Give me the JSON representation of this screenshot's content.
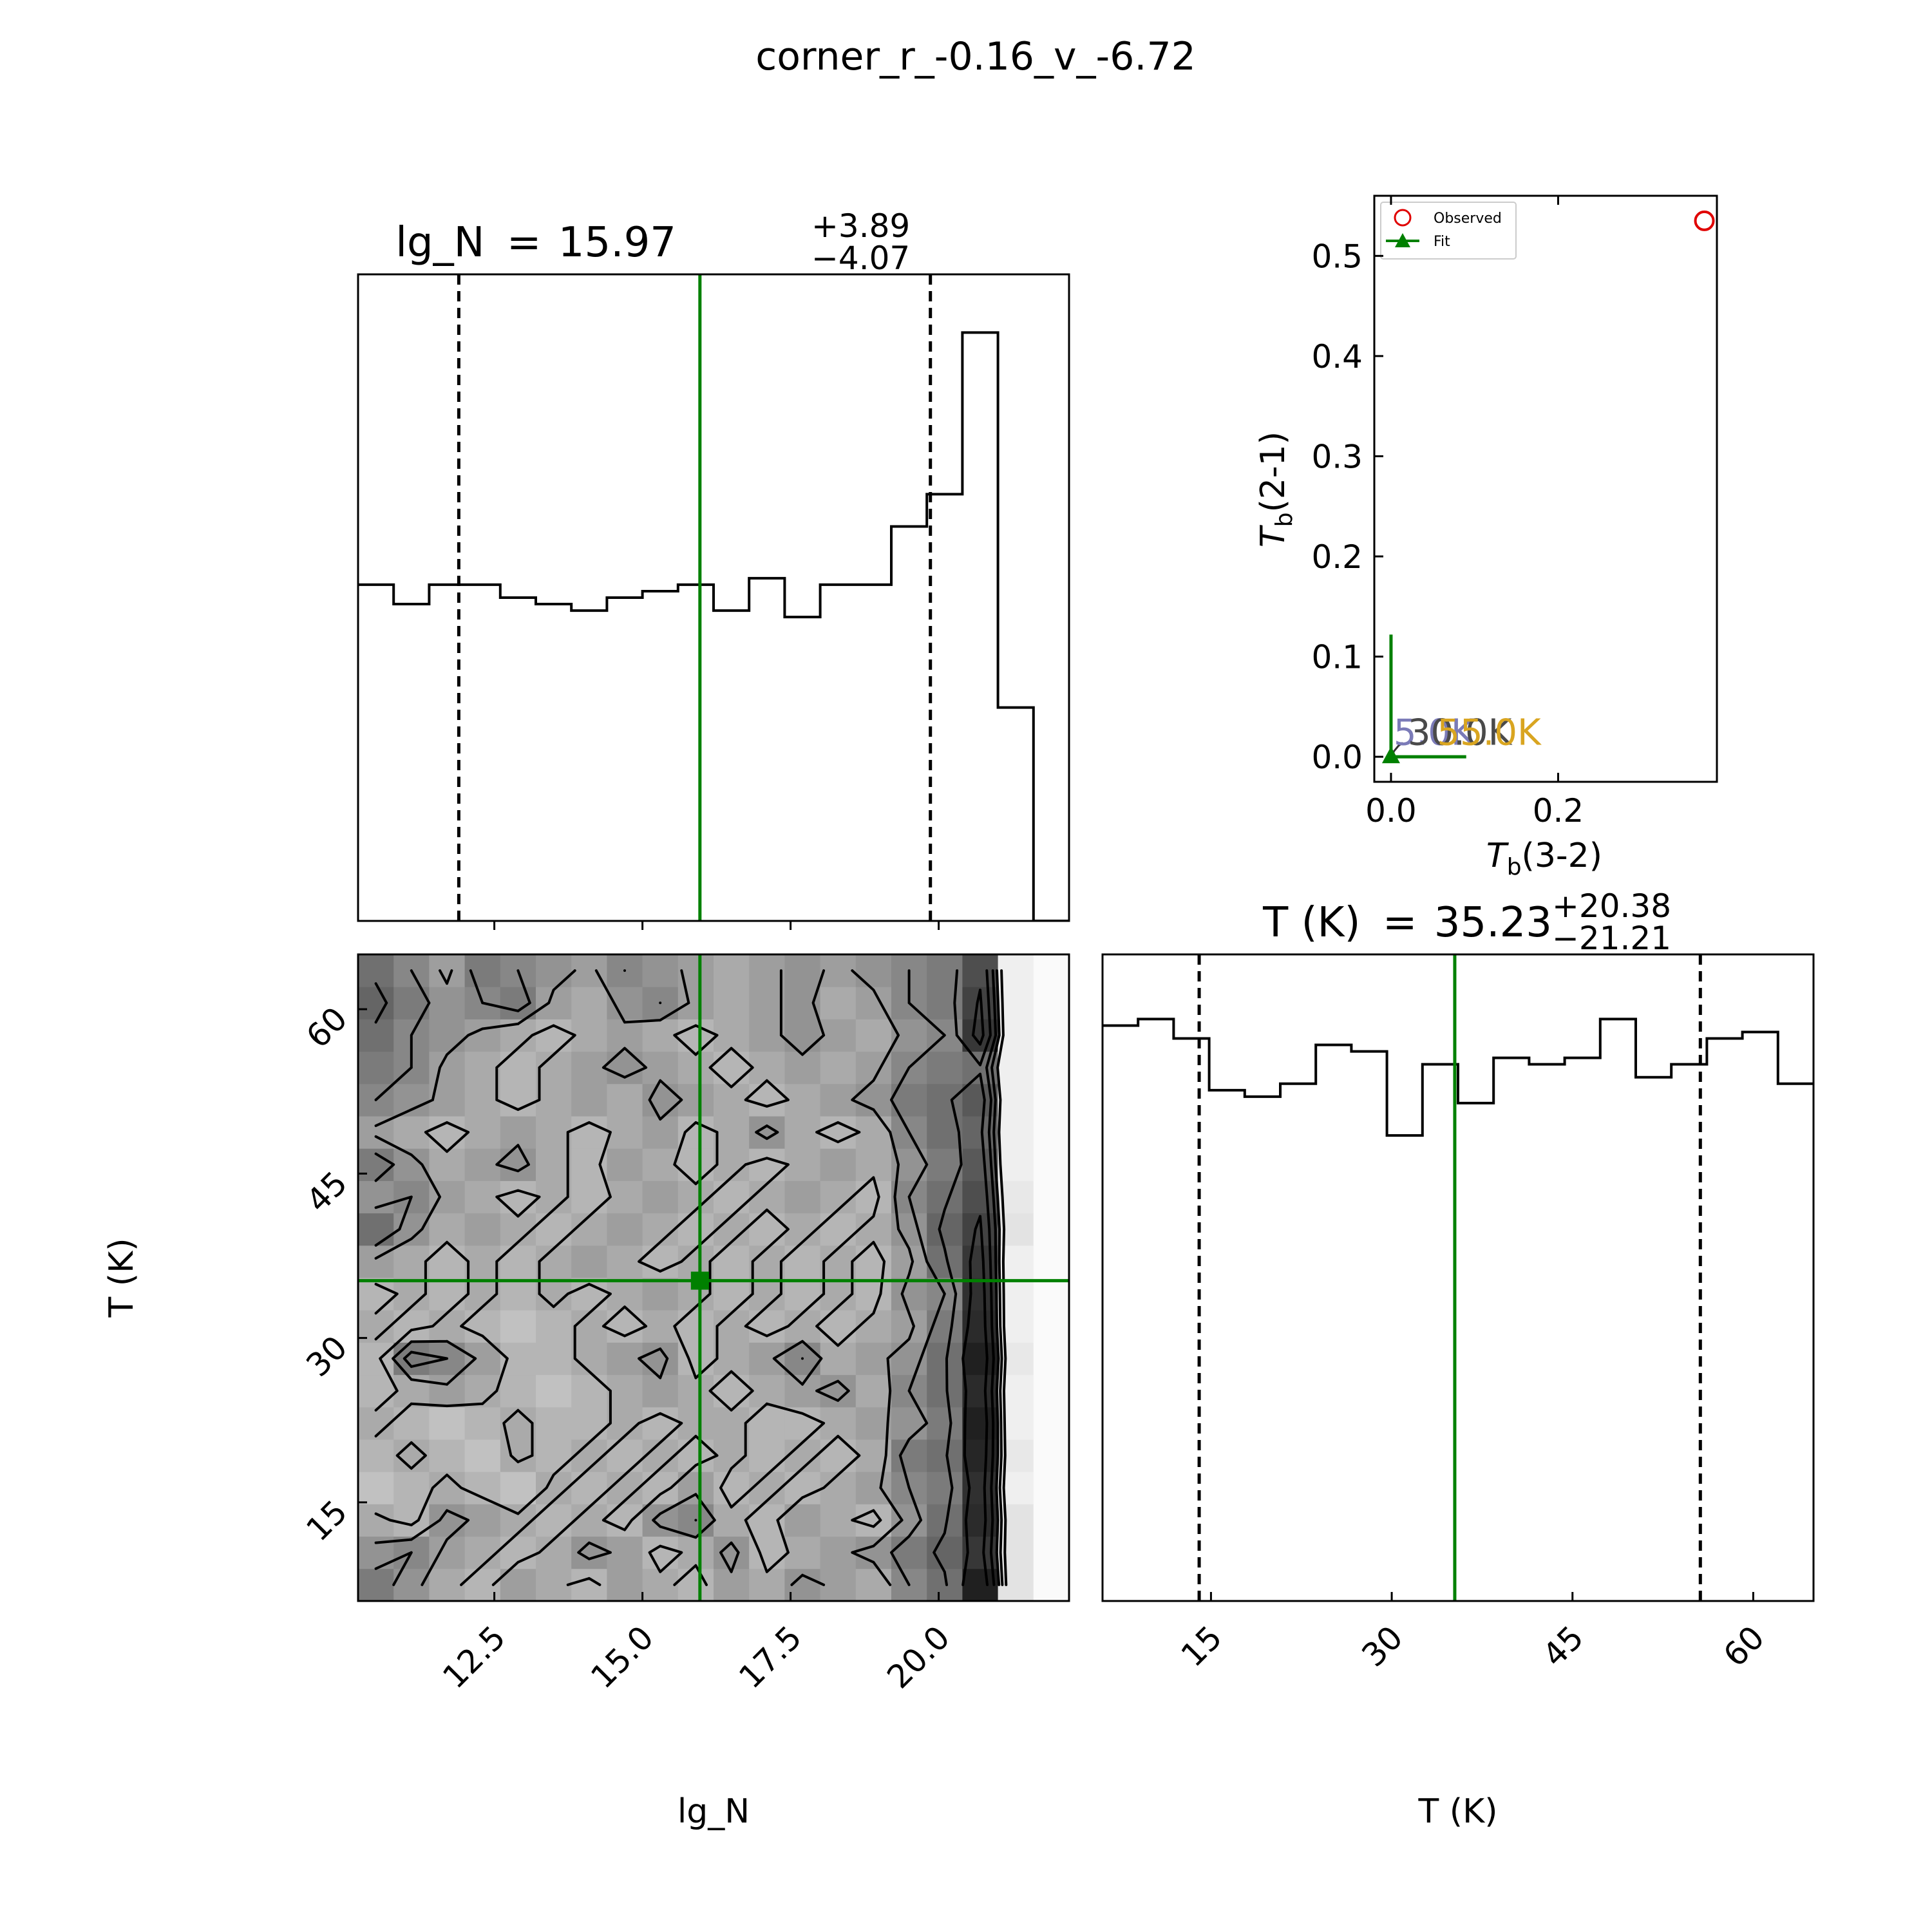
{
  "figure": {
    "title": "corner_r_-0.16_v_-6.72"
  },
  "colors": {
    "line": "#000000",
    "fit": "#008000",
    "observed": "#e00000",
    "label_5K": "#7b7bb8",
    "label_30K": "#4a4a4a",
    "label_55K": "#d9a520"
  },
  "chart_data": [
    {
      "type": "histogram",
      "panel": "lg_N marginal",
      "title_param": "lg_N",
      "title_value": "15.97",
      "title_plus": "+3.89",
      "title_minus": "−4.07",
      "xlim": [
        10.2,
        22.2
      ],
      "bin_edges": [
        10.2,
        10.8,
        11.4,
        12.0,
        12.6,
        13.2,
        13.8,
        14.4,
        15.0,
        15.6,
        16.2,
        16.8,
        17.4,
        18.0,
        18.6,
        19.2,
        19.8,
        20.4,
        21.0,
        21.6,
        22.2
      ],
      "counts": [
        0.52,
        0.49,
        0.52,
        0.52,
        0.5,
        0.49,
        0.48,
        0.5,
        0.51,
        0.52,
        0.48,
        0.53,
        0.47,
        0.52,
        0.52,
        0.61,
        0.66,
        0.91,
        0.33,
        0.0
      ],
      "ylim": [
        0,
        1.0
      ],
      "median": 15.97,
      "quantile_low": 11.9,
      "quantile_high": 19.86
    },
    {
      "type": "heatmap",
      "panel": "lg_N vs T (K) 2D posterior",
      "xlim": [
        10.2,
        22.2
      ],
      "ylim": [
        6.0,
        65.0
      ],
      "xticks": [
        12.5,
        15.0,
        17.5,
        20.0
      ],
      "xtick_labels": [
        "12.5",
        "15.0",
        "17.5",
        "20.0"
      ],
      "yticks": [
        15,
        30,
        45,
        60
      ],
      "ytick_labels": [
        "15",
        "30",
        "45",
        "60"
      ],
      "xlabel": "lg_N",
      "ylabel": "T (K)",
      "nx": 20,
      "ny": 20,
      "density": [
        [
          0.55,
          0.45,
          0.35,
          0.3,
          0.4,
          0.35,
          0.3,
          0.4,
          0.35,
          0.3,
          0.4,
          0.35,
          0.45,
          0.4,
          0.35,
          0.5,
          0.6,
          0.95,
          0.1,
          0.0
        ],
        [
          0.45,
          0.5,
          0.4,
          0.35,
          0.3,
          0.35,
          0.45,
          0.4,
          0.3,
          0.35,
          0.45,
          0.3,
          0.35,
          0.4,
          0.45,
          0.55,
          0.65,
          0.85,
          0.1,
          0.0
        ],
        [
          0.35,
          0.3,
          0.45,
          0.4,
          0.35,
          0.3,
          0.35,
          0.3,
          0.45,
          0.5,
          0.35,
          0.3,
          0.4,
          0.35,
          0.3,
          0.45,
          0.6,
          0.9,
          0.1,
          0.0
        ],
        [
          0.25,
          0.3,
          0.35,
          0.3,
          0.25,
          0.35,
          0.3,
          0.35,
          0.3,
          0.4,
          0.3,
          0.35,
          0.3,
          0.35,
          0.4,
          0.5,
          0.55,
          0.88,
          0.05,
          0.0
        ],
        [
          0.3,
          0.35,
          0.3,
          0.25,
          0.35,
          0.3,
          0.35,
          0.3,
          0.35,
          0.3,
          0.35,
          0.3,
          0.35,
          0.3,
          0.35,
          0.55,
          0.6,
          0.92,
          0.08,
          0.0
        ],
        [
          0.35,
          0.3,
          0.25,
          0.3,
          0.35,
          0.3,
          0.3,
          0.35,
          0.3,
          0.35,
          0.35,
          0.3,
          0.3,
          0.35,
          0.4,
          0.45,
          0.55,
          0.95,
          0.05,
          0.0
        ],
        [
          0.3,
          0.35,
          0.4,
          0.35,
          0.3,
          0.25,
          0.3,
          0.35,
          0.4,
          0.35,
          0.3,
          0.35,
          0.4,
          0.45,
          0.35,
          0.5,
          0.6,
          0.9,
          0.05,
          0.0
        ],
        [
          0.3,
          0.55,
          0.5,
          0.4,
          0.3,
          0.3,
          0.35,
          0.4,
          0.45,
          0.3,
          0.35,
          0.4,
          0.5,
          0.35,
          0.4,
          0.45,
          0.6,
          0.95,
          0.08,
          0.0
        ],
        [
          0.35,
          0.3,
          0.35,
          0.3,
          0.25,
          0.3,
          0.35,
          0.3,
          0.35,
          0.3,
          0.35,
          0.3,
          0.35,
          0.3,
          0.35,
          0.4,
          0.55,
          0.9,
          0.05,
          0.0
        ],
        [
          0.3,
          0.35,
          0.3,
          0.35,
          0.3,
          0.35,
          0.3,
          0.35,
          0.4,
          0.35,
          0.3,
          0.35,
          0.3,
          0.35,
          0.3,
          0.45,
          0.5,
          0.88,
          0.05,
          0.0
        ],
        [
          0.4,
          0.35,
          0.3,
          0.35,
          0.3,
          0.35,
          0.4,
          0.35,
          0.3,
          0.35,
          0.3,
          0.35,
          0.3,
          0.35,
          0.3,
          0.4,
          0.6,
          0.85,
          0.05,
          0.0
        ],
        [
          0.6,
          0.45,
          0.35,
          0.4,
          0.35,
          0.3,
          0.35,
          0.4,
          0.35,
          0.3,
          0.35,
          0.3,
          0.35,
          0.3,
          0.35,
          0.45,
          0.65,
          0.8,
          0.1,
          0.0
        ],
        [
          0.45,
          0.5,
          0.4,
          0.35,
          0.3,
          0.35,
          0.3,
          0.35,
          0.4,
          0.35,
          0.3,
          0.35,
          0.4,
          0.35,
          0.3,
          0.5,
          0.6,
          0.75,
          0.08,
          0.0
        ],
        [
          0.55,
          0.45,
          0.35,
          0.4,
          0.45,
          0.35,
          0.3,
          0.4,
          0.35,
          0.3,
          0.35,
          0.3,
          0.35,
          0.4,
          0.35,
          0.45,
          0.55,
          0.7,
          0.05,
          0.0
        ],
        [
          0.4,
          0.35,
          0.3,
          0.35,
          0.4,
          0.35,
          0.3,
          0.35,
          0.4,
          0.3,
          0.35,
          0.45,
          0.35,
          0.3,
          0.35,
          0.5,
          0.6,
          0.65,
          0.05,
          0.0
        ],
        [
          0.5,
          0.45,
          0.4,
          0.35,
          0.3,
          0.35,
          0.4,
          0.35,
          0.45,
          0.4,
          0.35,
          0.3,
          0.35,
          0.4,
          0.45,
          0.55,
          0.6,
          0.7,
          0.05,
          0.0
        ],
        [
          0.55,
          0.5,
          0.4,
          0.35,
          0.3,
          0.35,
          0.4,
          0.45,
          0.4,
          0.35,
          0.3,
          0.35,
          0.4,
          0.35,
          0.4,
          0.5,
          0.55,
          0.6,
          0.05,
          0.0
        ],
        [
          0.6,
          0.5,
          0.45,
          0.4,
          0.35,
          0.3,
          0.35,
          0.4,
          0.35,
          0.3,
          0.35,
          0.4,
          0.45,
          0.4,
          0.35,
          0.45,
          0.5,
          0.85,
          0.05,
          0.0
        ],
        [
          0.65,
          0.55,
          0.45,
          0.5,
          0.55,
          0.4,
          0.35,
          0.45,
          0.5,
          0.4,
          0.35,
          0.4,
          0.45,
          0.35,
          0.4,
          0.5,
          0.55,
          0.8,
          0.05,
          0.0
        ],
        [
          0.6,
          0.5,
          0.4,
          0.55,
          0.5,
          0.45,
          0.4,
          0.5,
          0.45,
          0.4,
          0.35,
          0.4,
          0.45,
          0.4,
          0.45,
          0.5,
          0.55,
          0.75,
          0.05,
          0.0
        ]
      ],
      "best_fit_x": 15.97,
      "best_fit_y": 35.23
    },
    {
      "type": "histogram",
      "panel": "T (K) marginal",
      "title_param": "T (K)",
      "title_value": "35.23",
      "title_plus": "+20.38",
      "title_minus": "−21.21",
      "xlim": [
        6.0,
        65.0
      ],
      "xticks": [
        15,
        30,
        45,
        60
      ],
      "xtick_labels": [
        "15",
        "30",
        "45",
        "60"
      ],
      "xlabel": "T (K)",
      "bin_edges": [
        6.0,
        8.95,
        11.9,
        14.85,
        17.8,
        20.75,
        23.7,
        26.65,
        29.6,
        32.55,
        35.5,
        38.45,
        41.4,
        44.35,
        47.3,
        50.25,
        53.2,
        56.15,
        59.1,
        62.05,
        65.0
      ],
      "counts": [
        0.89,
        0.9,
        0.87,
        0.79,
        0.78,
        0.8,
        0.86,
        0.85,
        0.72,
        0.83,
        0.77,
        0.84,
        0.83,
        0.84,
        0.9,
        0.81,
        0.83,
        0.87,
        0.88,
        0.8
      ],
      "ylim": [
        0,
        1.0
      ],
      "median": 35.23,
      "quantile_low": 14.02,
      "quantile_high": 55.61
    },
    {
      "type": "scatter",
      "panel": "Tb(2-1) vs Tb(3-2)",
      "xlim": [
        -0.02,
        0.39
      ],
      "ylim": [
        -0.025,
        0.56
      ],
      "xticks": [
        0.0,
        0.2
      ],
      "xtick_labels": [
        "0.0",
        "0.2"
      ],
      "yticks": [
        0.0,
        0.1,
        0.2,
        0.3,
        0.4,
        0.5
      ],
      "ytick_labels": [
        "0.0",
        "0.1",
        "0.2",
        "0.3",
        "0.4",
        "0.5"
      ],
      "xlabel_main": "T",
      "xlabel_sub": "b",
      "xlabel_rest": "(3-2)",
      "ylabel_main": "T",
      "ylabel_sub": "b",
      "ylabel_rest": "(2-1)",
      "legend": [
        "Observed",
        "Fit"
      ],
      "legend_position": "upper-left",
      "observed": {
        "x": 0.375,
        "y": 0.535
      },
      "fit": {
        "x": 0.0,
        "y": 0.0
      },
      "fit_err_x": [
        0.0,
        0.09
      ],
      "fit_err_y": [
        0.0,
        0.122
      ],
      "temperature_labels": [
        {
          "text": "5.0K",
          "x": 0.003,
          "y": 0.012,
          "color_key": "label_5K"
        },
        {
          "text": "30.0K",
          "x": 0.02,
          "y": 0.012,
          "color_key": "label_30K"
        },
        {
          "text": "55.0K",
          "x": 0.055,
          "y": 0.012,
          "color_key": "label_55K"
        }
      ],
      "track": [
        [
          0.0,
          0.0
        ],
        [
          0.004,
          0.006
        ],
        [
          0.009,
          0.011
        ],
        [
          0.014,
          0.014
        ]
      ]
    }
  ]
}
